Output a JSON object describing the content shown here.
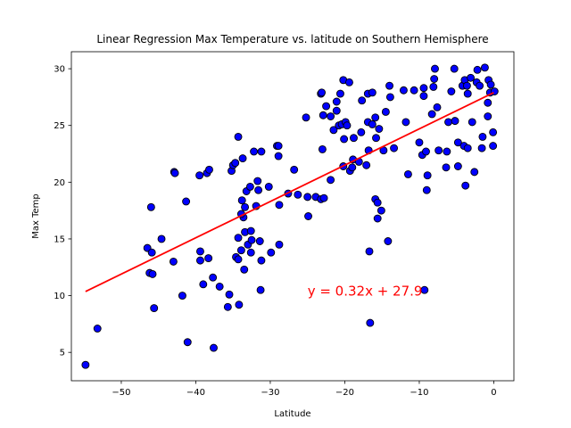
{
  "chart_data": {
    "type": "scatter",
    "title": "Linear Regression Max Temperature vs. latitude on Southern Hemisphere",
    "xlabel": "Latitude",
    "ylabel": "Max Temp",
    "xlim": [
      -56.7,
      2.7
    ],
    "ylim": [
      2.5,
      31.5
    ],
    "xticks": [
      -50,
      -40,
      -30,
      -20,
      -10,
      0
    ],
    "yticks": [
      5,
      10,
      15,
      20,
      25,
      30
    ],
    "grid": false,
    "annotation": {
      "text": "y = 0.32x + 27.9",
      "x": -25,
      "y": 10,
      "color": "#ff0000"
    },
    "regression": {
      "slope": 0.32,
      "intercept": 27.9,
      "x_range": [
        -54.8,
        0
      ],
      "color": "#ff0000"
    },
    "marker_color": "#0000ff",
    "points": [
      [
        -54.8,
        3.9
      ],
      [
        -53.2,
        7.1
      ],
      [
        -46.5,
        14.2
      ],
      [
        -46.0,
        17.8
      ],
      [
        -46.2,
        12.0
      ],
      [
        -45.8,
        11.9
      ],
      [
        -45.9,
        13.8
      ],
      [
        -45.6,
        8.9
      ],
      [
        -44.6,
        15.0
      ],
      [
        -43.0,
        13.0
      ],
      [
        -42.9,
        20.9
      ],
      [
        -42.8,
        20.8
      ],
      [
        -41.8,
        10.0
      ],
      [
        -41.3,
        18.3
      ],
      [
        -41.1,
        5.9
      ],
      [
        -39.5,
        20.6
      ],
      [
        -39.4,
        13.9
      ],
      [
        -39.4,
        13.1
      ],
      [
        -39.0,
        11.0
      ],
      [
        -38.5,
        20.8
      ],
      [
        -38.2,
        21.1
      ],
      [
        -38.3,
        13.3
      ],
      [
        -37.7,
        11.6
      ],
      [
        -37.6,
        5.4
      ],
      [
        -36.8,
        10.8
      ],
      [
        -35.7,
        9.0
      ],
      [
        -35.5,
        10.1
      ],
      [
        -35.2,
        21.0
      ],
      [
        -35.0,
        21.5
      ],
      [
        -34.7,
        21.7
      ],
      [
        -34.6,
        13.4
      ],
      [
        -34.3,
        24.0
      ],
      [
        -34.3,
        15.1
      ],
      [
        -34.2,
        9.2
      ],
      [
        -34.3,
        13.2
      ],
      [
        -33.7,
        22.1
      ],
      [
        -33.9,
        14.0
      ],
      [
        -33.6,
        16.9
      ],
      [
        -33.9,
        17.2
      ],
      [
        -33.8,
        18.4
      ],
      [
        -33.5,
        12.3
      ],
      [
        -33.4,
        15.6
      ],
      [
        -33.4,
        17.8
      ],
      [
        -33.2,
        19.2
      ],
      [
        -33.0,
        14.5
      ],
      [
        -32.7,
        19.6
      ],
      [
        -32.6,
        15.7
      ],
      [
        -32.5,
        14.9
      ],
      [
        -32.6,
        13.8
      ],
      [
        -32.2,
        22.7
      ],
      [
        -31.9,
        17.9
      ],
      [
        -31.7,
        20.1
      ],
      [
        -31.6,
        19.3
      ],
      [
        -31.4,
        14.8
      ],
      [
        -31.2,
        13.1
      ],
      [
        -31.3,
        10.5
      ],
      [
        -31.2,
        22.7
      ],
      [
        -30.2,
        19.6
      ],
      [
        -29.9,
        13.8
      ],
      [
        -29.1,
        23.2
      ],
      [
        -28.9,
        23.2
      ],
      [
        -28.9,
        22.3
      ],
      [
        -28.8,
        18.0
      ],
      [
        -28.8,
        14.5
      ],
      [
        -27.6,
        19.0
      ],
      [
        -26.8,
        21.1
      ],
      [
        -26.3,
        18.9
      ],
      [
        -25.2,
        25.7
      ],
      [
        -25.0,
        18.7
      ],
      [
        -24.9,
        17.0
      ],
      [
        -23.9,
        18.7
      ],
      [
        -23.2,
        18.5
      ],
      [
        -23.2,
        27.8
      ],
      [
        -23.1,
        27.9
      ],
      [
        -22.9,
        25.9
      ],
      [
        -23.0,
        22.9
      ],
      [
        -22.8,
        18.6
      ],
      [
        -22.5,
        26.7
      ],
      [
        -21.9,
        25.8
      ],
      [
        -21.9,
        20.2
      ],
      [
        -21.5,
        24.6
      ],
      [
        -21.1,
        26.3
      ],
      [
        -21.1,
        27.1
      ],
      [
        -20.8,
        25.0
      ],
      [
        -20.6,
        27.8
      ],
      [
        -20.4,
        25.1
      ],
      [
        -20.2,
        29.0
      ],
      [
        -20.2,
        21.4
      ],
      [
        -20.1,
        23.8
      ],
      [
        -19.9,
        25.3
      ],
      [
        -19.7,
        25.0
      ],
      [
        -19.4,
        28.8
      ],
      [
        -19.3,
        21.0
      ],
      [
        -19.0,
        21.3
      ],
      [
        -18.9,
        22.0
      ],
      [
        -18.8,
        23.9
      ],
      [
        -18.1,
        21.8
      ],
      [
        -17.8,
        24.4
      ],
      [
        -17.7,
        27.2
      ],
      [
        -17.1,
        21.5
      ],
      [
        -16.9,
        25.3
      ],
      [
        -16.9,
        27.8
      ],
      [
        -16.8,
        22.8
      ],
      [
        -16.7,
        13.9
      ],
      [
        -16.6,
        7.6
      ],
      [
        -16.3,
        25.1
      ],
      [
        -16.3,
        27.9
      ],
      [
        -15.9,
        18.5
      ],
      [
        -15.9,
        25.7
      ],
      [
        -15.8,
        23.9
      ],
      [
        -15.6,
        18.2
      ],
      [
        -15.6,
        16.8
      ],
      [
        -15.4,
        24.7
      ],
      [
        -15.1,
        17.5
      ],
      [
        -14.8,
        22.8
      ],
      [
        -14.5,
        26.2
      ],
      [
        -14.2,
        14.8
      ],
      [
        -14.0,
        28.5
      ],
      [
        -13.9,
        27.5
      ],
      [
        -13.4,
        23.0
      ],
      [
        -12.1,
        28.1
      ],
      [
        -11.8,
        25.3
      ],
      [
        -11.5,
        20.7
      ],
      [
        -10.7,
        28.1
      ],
      [
        -10.0,
        23.5
      ],
      [
        -9.6,
        22.4
      ],
      [
        -9.4,
        27.6
      ],
      [
        -9.4,
        28.3
      ],
      [
        -9.1,
        22.7
      ],
      [
        -9.0,
        19.3
      ],
      [
        -8.9,
        20.6
      ],
      [
        -9.3,
        10.5
      ],
      [
        -8.3,
        26.0
      ],
      [
        -8.1,
        28.4
      ],
      [
        -8.0,
        29.1
      ],
      [
        -7.9,
        30.0
      ],
      [
        -7.6,
        26.6
      ],
      [
        -7.4,
        22.8
      ],
      [
        -6.4,
        21.3
      ],
      [
        -6.3,
        22.7
      ],
      [
        -6.1,
        25.3
      ],
      [
        -5.7,
        28.0
      ],
      [
        -5.3,
        30.0
      ],
      [
        -5.2,
        25.4
      ],
      [
        -4.8,
        23.5
      ],
      [
        -4.8,
        21.4
      ],
      [
        -4.2,
        28.5
      ],
      [
        -4.0,
        23.2
      ],
      [
        -3.9,
        29.0
      ],
      [
        -3.8,
        19.7
      ],
      [
        -3.6,
        28.5
      ],
      [
        -3.5,
        27.8
      ],
      [
        -3.5,
        23.0
      ],
      [
        -3.1,
        29.2
      ],
      [
        -2.9,
        25.3
      ],
      [
        -2.6,
        20.9
      ],
      [
        -2.2,
        29.9
      ],
      [
        -2.3,
        28.8
      ],
      [
        -1.9,
        28.5
      ],
      [
        -1.6,
        23.0
      ],
      [
        -1.5,
        24.0
      ],
      [
        -1.2,
        30.1
      ],
      [
        -0.8,
        25.8
      ],
      [
        -0.8,
        27.0
      ],
      [
        -0.7,
        29.0
      ],
      [
        -0.4,
        28.6
      ],
      [
        -0.5,
        27.9
      ],
      [
        -0.1,
        24.4
      ],
      [
        -0.1,
        23.2
      ],
      [
        0.1,
        28.0
      ]
    ]
  }
}
